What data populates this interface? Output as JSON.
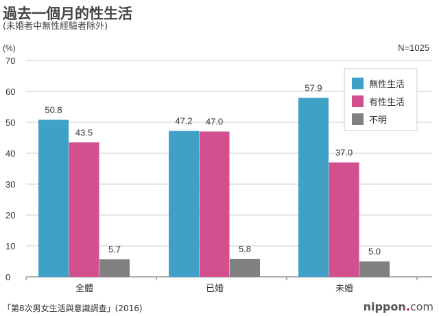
{
  "chart_data": {
    "type": "bar",
    "title": "過去一個月的性生活",
    "subtitle": "(未婚者中無性經驗者除外)",
    "ylabel": "(%)",
    "annotation": "N=1025",
    "ylim": [
      0,
      70
    ],
    "yticks": [
      0,
      10,
      20,
      30,
      40,
      50,
      60,
      70
    ],
    "categories": [
      "全體",
      "已婚",
      "未婚"
    ],
    "series": [
      {
        "name": "無性生活",
        "color": "#3ea1c5",
        "values": [
          50.8,
          47.2,
          57.9
        ],
        "labels": [
          "50.8",
          "47.2",
          "57.9"
        ]
      },
      {
        "name": "有性生活",
        "color": "#d3508f",
        "values": [
          43.5,
          47.0,
          37.0
        ],
        "labels": [
          "43.5",
          "47.0",
          "37.0"
        ]
      },
      {
        "name": "不明",
        "color": "#808080",
        "values": [
          5.7,
          5.8,
          5.0
        ],
        "labels": [
          "5.7",
          "5.8",
          "5.0"
        ]
      }
    ],
    "legend_position": "top-right",
    "grid": true
  },
  "source": "「第8次男女生活與意識調查」(2016)",
  "logo": {
    "main": "nippon",
    "dot": ".",
    "suffix": "com"
  }
}
